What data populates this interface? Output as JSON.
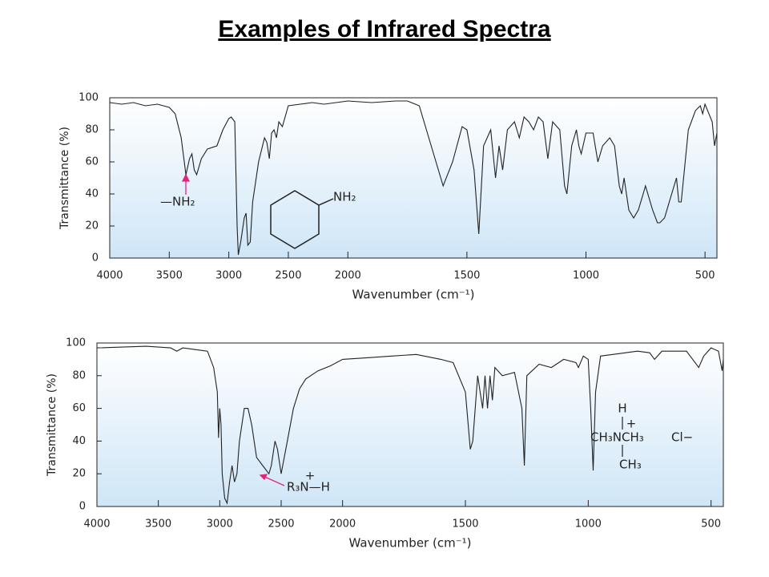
{
  "title": "Examples of Infrared Spectra",
  "chart_data": [
    {
      "type": "line",
      "xlabel": "Wavenumber (cm⁻¹)",
      "ylabel": "Transmittance (%)",
      "xlim": [
        4000,
        450
      ],
      "xscale_break": 2000,
      "ylim": [
        0,
        100
      ],
      "xticks": [
        4000,
        3500,
        3000,
        2500,
        2000,
        1500,
        1000,
        500
      ],
      "yticks": [
        0,
        20,
        40,
        60,
        80,
        100
      ],
      "annotations": [
        "—NH₂",
        "NH₂"
      ],
      "x": [
        4000,
        3900,
        3800,
        3700,
        3600,
        3500,
        3450,
        3400,
        3360,
        3330,
        3310,
        3290,
        3270,
        3230,
        3180,
        3100,
        3050,
        3000,
        2980,
        2950,
        2930,
        2920,
        2900,
        2870,
        2855,
        2840,
        2820,
        2800,
        2750,
        2700,
        2680,
        2660,
        2640,
        2620,
        2600,
        2580,
        2550,
        2500,
        2400,
        2300,
        2200,
        2100,
        2000,
        1900,
        1800,
        1750,
        1700,
        1650,
        1600,
        1560,
        1520,
        1500,
        1470,
        1450,
        1430,
        1400,
        1380,
        1365,
        1350,
        1330,
        1300,
        1280,
        1260,
        1240,
        1220,
        1200,
        1180,
        1160,
        1140,
        1110,
        1090,
        1080,
        1060,
        1040,
        1030,
        1020,
        1000,
        970,
        950,
        930,
        900,
        880,
        860,
        850,
        840,
        820,
        800,
        780,
        760,
        750,
        720,
        700,
        690,
        670,
        650,
        630,
        620,
        610,
        600,
        590,
        570,
        540,
        520,
        510,
        500,
        470,
        460,
        450
      ],
      "series": [
        {
          "name": "Cyclohexylamine",
          "color": "#222222",
          "values": [
            97,
            96,
            97,
            95,
            96,
            94,
            90,
            75,
            52,
            62,
            65,
            55,
            52,
            62,
            68,
            70,
            80,
            87,
            88,
            85,
            20,
            2,
            10,
            25,
            28,
            8,
            10,
            35,
            60,
            75,
            72,
            62,
            78,
            80,
            75,
            85,
            82,
            95,
            96,
            97,
            96,
            97,
            98,
            97,
            98,
            98,
            95,
            70,
            45,
            60,
            82,
            80,
            55,
            15,
            70,
            80,
            50,
            70,
            55,
            80,
            85,
            75,
            88,
            85,
            80,
            88,
            85,
            62,
            85,
            80,
            45,
            40,
            70,
            80,
            70,
            65,
            78,
            78,
            60,
            70,
            75,
            70,
            45,
            40,
            50,
            30,
            25,
            30,
            40,
            45,
            30,
            22,
            22,
            25,
            35,
            45,
            50,
            35,
            35,
            50,
            80,
            92,
            95,
            90,
            96,
            85,
            70,
            78
          ]
        }
      ]
    },
    {
      "type": "line",
      "xlabel": "Wavenumber (cm⁻¹)",
      "ylabel": "Transmittance (%)",
      "xlim": [
        4000,
        450
      ],
      "xscale_break": 2000,
      "ylim": [
        0,
        100
      ],
      "xticks": [
        4000,
        3500,
        3000,
        2500,
        2000,
        1500,
        1000,
        500
      ],
      "yticks": [
        0,
        20,
        40,
        60,
        80,
        100
      ],
      "annotations": [
        "R₃N—H",
        "+",
        "H",
        "+",
        "CH₃NCH₃",
        "CH₃",
        "Cl−"
      ],
      "x": [
        4000,
        3600,
        3400,
        3350,
        3300,
        3200,
        3100,
        3050,
        3020,
        3010,
        3000,
        2990,
        2980,
        2960,
        2940,
        2920,
        2900,
        2880,
        2860,
        2840,
        2800,
        2770,
        2740,
        2700,
        2650,
        2600,
        2580,
        2550,
        2530,
        2500,
        2450,
        2400,
        2350,
        2300,
        2200,
        2100,
        2000,
        1900,
        1800,
        1700,
        1600,
        1550,
        1500,
        1480,
        1470,
        1450,
        1430,
        1420,
        1410,
        1400,
        1390,
        1380,
        1350,
        1300,
        1270,
        1260,
        1250,
        1200,
        1150,
        1100,
        1050,
        1040,
        1020,
        1000,
        990,
        980,
        970,
        950,
        900,
        800,
        750,
        730,
        700,
        600,
        550,
        530,
        500,
        470,
        455,
        450
      ],
      "series": [
        {
          "name": "Trimethylammonium chloride",
          "color": "#222222",
          "values": [
            97,
            98,
            97,
            95,
            97,
            96,
            95,
            85,
            70,
            42,
            60,
            50,
            20,
            5,
            2,
            15,
            25,
            15,
            20,
            40,
            60,
            60,
            50,
            30,
            25,
            20,
            25,
            40,
            35,
            20,
            40,
            60,
            72,
            78,
            83,
            86,
            90,
            91,
            92,
            93,
            90,
            88,
            70,
            35,
            40,
            80,
            60,
            80,
            60,
            80,
            65,
            85,
            80,
            82,
            60,
            25,
            80,
            87,
            85,
            90,
            88,
            85,
            92,
            90,
            60,
            22,
            70,
            92,
            93,
            95,
            94,
            90,
            95,
            95,
            85,
            92,
            97,
            95,
            83,
            90
          ]
        }
      ]
    }
  ]
}
